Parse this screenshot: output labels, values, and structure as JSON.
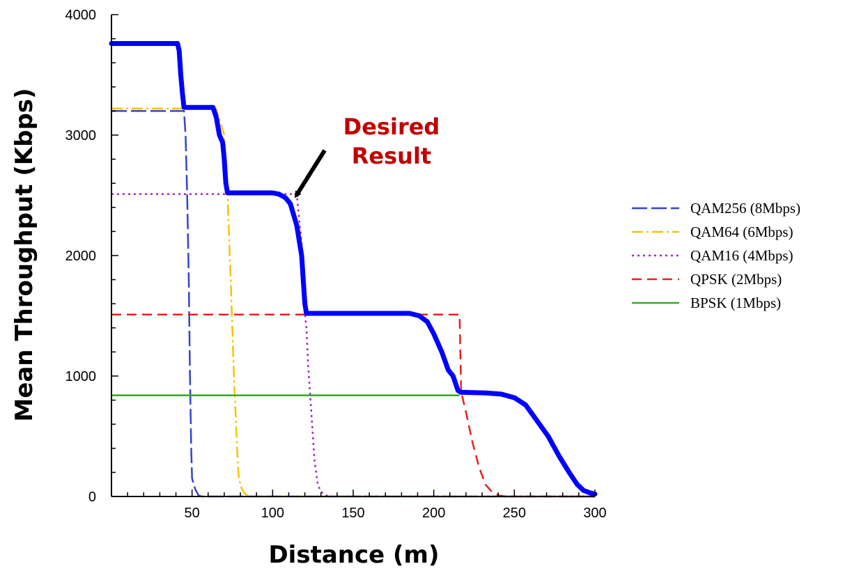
{
  "chart_data": {
    "type": "line",
    "xlabel": "Distance (m)",
    "ylabel": "Mean Throughput (Kbps)",
    "xlim": [
      0,
      300
    ],
    "ylim": [
      0,
      4000
    ],
    "x_ticks": [
      50,
      100,
      150,
      200,
      250,
      300
    ],
    "y_ticks": [
      0,
      1000,
      2000,
      3000,
      4000
    ],
    "legend_position": "right",
    "grid": false,
    "series": [
      {
        "name": "QAM256 (8Mbps)",
        "color": "#3344cc",
        "dash": "long-dash",
        "points": [
          [
            0,
            3200
          ],
          [
            45,
            3200
          ],
          [
            46,
            3000
          ],
          [
            47,
            2500
          ],
          [
            48,
            1800
          ],
          [
            48.7,
            1000
          ],
          [
            49.5,
            400
          ],
          [
            50,
            150
          ],
          [
            52,
            60
          ],
          [
            54,
            10
          ],
          [
            56,
            0
          ],
          [
            300,
            0
          ]
        ]
      },
      {
        "name": "QAM64 (6Mbps)",
        "color": "#f5c400",
        "dash": "dash-dot",
        "points": [
          [
            0,
            3220
          ],
          [
            43,
            3220
          ],
          [
            65,
            3220
          ],
          [
            70,
            3000
          ],
          [
            72,
            2500
          ],
          [
            74,
            1800
          ],
          [
            76,
            1000
          ],
          [
            78,
            400
          ],
          [
            79,
            150
          ],
          [
            81,
            60
          ],
          [
            83,
            20
          ],
          [
            86,
            0
          ],
          [
            300,
            0
          ]
        ]
      },
      {
        "name": "QAM16 (4Mbps)",
        "color": "#aa22cc",
        "dash": "dotted",
        "points": [
          [
            0,
            2510
          ],
          [
            72,
            2510
          ],
          [
            115,
            2510
          ],
          [
            118,
            2100
          ],
          [
            120,
            1520
          ],
          [
            121,
            1400
          ],
          [
            122,
            1100
          ],
          [
            124,
            700
          ],
          [
            126,
            300
          ],
          [
            128,
            100
          ],
          [
            130,
            40
          ],
          [
            133,
            10
          ],
          [
            136,
            0
          ],
          [
            300,
            0
          ]
        ]
      },
      {
        "name": "QPSK (2Mbps)",
        "color": "#e8201a",
        "dash": "dashed",
        "points": [
          [
            0,
            1510
          ],
          [
            121,
            1510
          ],
          [
            216,
            1510
          ],
          [
            217,
            870
          ],
          [
            220,
            700
          ],
          [
            224,
            450
          ],
          [
            228,
            250
          ],
          [
            232,
            100
          ],
          [
            236,
            40
          ],
          [
            240,
            10
          ],
          [
            245,
            0
          ],
          [
            300,
            0
          ]
        ]
      },
      {
        "name": "BPSK (1Mbps)",
        "color": "#33aa22",
        "dash": "solid",
        "points": [
          [
            0,
            840
          ],
          [
            216,
            840
          ]
        ]
      },
      {
        "name": "",
        "color": "#0000ff",
        "dash": "solid",
        "width": 7,
        "points": [
          [
            0,
            3760
          ],
          [
            41,
            3760
          ],
          [
            42,
            3700
          ],
          [
            43,
            3500
          ],
          [
            44,
            3350
          ],
          [
            45,
            3230
          ],
          [
            47,
            3230
          ],
          [
            63,
            3230
          ],
          [
            65,
            3150
          ],
          [
            67,
            3000
          ],
          [
            69,
            2940
          ],
          [
            70,
            2800
          ],
          [
            71,
            2600
          ],
          [
            72,
            2520
          ],
          [
            75,
            2520
          ],
          [
            100,
            2520
          ],
          [
            104,
            2510
          ],
          [
            108,
            2480
          ],
          [
            111,
            2430
          ],
          [
            115,
            2250
          ],
          [
            118,
            2000
          ],
          [
            119,
            1800
          ],
          [
            120,
            1600
          ],
          [
            121,
            1520
          ],
          [
            125,
            1520
          ],
          [
            185,
            1520
          ],
          [
            191,
            1500
          ],
          [
            196,
            1450
          ],
          [
            200,
            1350
          ],
          [
            205,
            1200
          ],
          [
            209,
            1050
          ],
          [
            212,
            1000
          ],
          [
            215,
            880
          ],
          [
            217,
            865
          ],
          [
            232,
            860
          ],
          [
            242,
            850
          ],
          [
            250,
            820
          ],
          [
            257,
            760
          ],
          [
            264,
            630
          ],
          [
            271,
            500
          ],
          [
            278,
            330
          ],
          [
            284,
            200
          ],
          [
            289,
            100
          ],
          [
            293,
            50
          ],
          [
            297,
            30
          ],
          [
            300,
            20
          ]
        ]
      }
    ],
    "annotation": {
      "lines": [
        "Desired",
        "Result"
      ],
      "arrow_from": [
        128,
        2700
      ],
      "arrow_to": [
        112,
        2450
      ]
    }
  }
}
